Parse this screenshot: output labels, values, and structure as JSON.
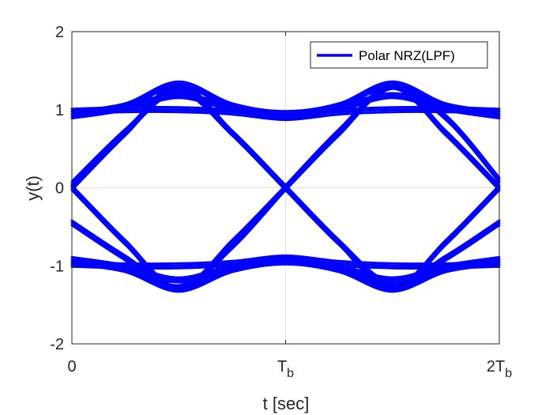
{
  "chart_data": {
    "type": "line",
    "title": "",
    "xlabel": "t [sec]",
    "ylabel": "y(t)",
    "xlim": [
      0,
      2
    ],
    "ylim": [
      -2,
      2
    ],
    "x_ticks": [
      {
        "value": 0,
        "label": "0",
        "sub": ""
      },
      {
        "value": 1,
        "label": "T",
        "sub": "b"
      },
      {
        "value": 2,
        "label": "2T",
        "sub": "b"
      }
    ],
    "y_ticks": [
      {
        "value": -2,
        "label": "-2"
      },
      {
        "value": -1,
        "label": "-1"
      },
      {
        "value": 0,
        "label": "0"
      },
      {
        "value": 1,
        "label": "1"
      },
      {
        "value": 2,
        "label": "2"
      }
    ],
    "grid": true,
    "legend": {
      "position": "top-right",
      "entries": [
        "Polar NRZ(LPF)"
      ]
    },
    "series": [
      {
        "name": "Polar NRZ(LPF)",
        "color": "#0000ff",
        "trace_period_Tb": 2,
        "x": [
          0.0,
          0.25,
          0.5,
          0.75,
          1.0,
          1.25,
          1.5,
          1.75,
          2.0
        ],
        "traces": [
          {
            "y": [
              0.95,
              1.05,
              1.33,
              1.05,
              0.95,
              1.05,
              1.33,
              1.05,
              0.95
            ]
          },
          {
            "y": [
              0.92,
              1.02,
              1.18,
              1.02,
              0.92,
              1.02,
              1.18,
              1.02,
              0.92
            ]
          },
          {
            "y": [
              -0.95,
              -1.05,
              -1.3,
              -1.05,
              -0.95,
              -1.05,
              -1.3,
              -1.05,
              -0.95
            ]
          },
          {
            "y": [
              -0.92,
              -1.02,
              -1.18,
              -1.02,
              -0.92,
              -1.02,
              -1.18,
              -1.02,
              -0.92
            ]
          },
          {
            "y": [
              0.98,
              1.0,
              1.0,
              0.97,
              0.9,
              0.97,
              1.0,
              1.0,
              0.98
            ]
          },
          {
            "y": [
              -0.98,
              -1.0,
              -1.0,
              -0.97,
              -0.9,
              -0.97,
              -1.0,
              -1.0,
              -0.98
            ]
          },
          {
            "y": [
              0.0,
              0.7,
              1.3,
              0.7,
              0.0,
              -0.7,
              -1.3,
              -0.7,
              0.0
            ]
          },
          {
            "y": [
              0.0,
              -0.7,
              -1.3,
              -0.7,
              0.0,
              0.7,
              1.3,
              0.7,
              0.0
            ]
          },
          {
            "y": [
              -0.45,
              -0.9,
              -1.28,
              -0.75,
              0.0,
              0.72,
              1.3,
              0.9,
              0.1
            ]
          },
          {
            "y": [
              0.05,
              0.72,
              1.25,
              0.7,
              0.0,
              -0.7,
              -1.25,
              -0.9,
              -0.45
            ]
          }
        ]
      }
    ]
  }
}
